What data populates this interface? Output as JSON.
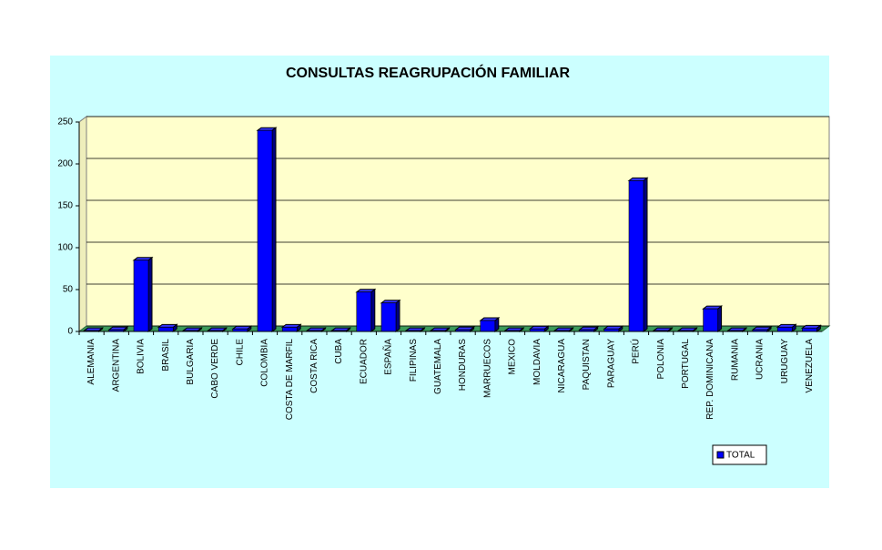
{
  "chart_data": {
    "type": "bar3d",
    "title": "CONSULTAS REAGRUPACIÓN FAMILIAR",
    "categories": [
      "ALEMANIA",
      "ARGENTINA",
      "BOLIVIA",
      "BRASIL",
      "BULGARIA",
      "CABO VERDE",
      "CHILE",
      "COLOMBIA",
      "COSTA DE MARFIL",
      "COSTA RICA",
      "CUBA",
      "ECUADOR",
      "ESPAÑA",
      "FILIPINAS",
      "GUATEMALA",
      "HONDURAS",
      "MARRUECOS",
      "MEXICO",
      "MOLDAVIA",
      "NICARAGUA",
      "PAQUISTAN",
      "PARAGUAY",
      "PERÚ",
      "POLONIA",
      "PORTUGAL",
      "REP. DOMINICANA",
      "RUMANIA",
      "UCRANIA",
      "URUGUAY",
      "VENEZUELA"
    ],
    "series": [
      {
        "name": "TOTAL",
        "color": "#0000ff",
        "values": [
          1,
          2,
          85,
          5,
          1,
          1,
          3,
          240,
          5,
          1,
          1,
          47,
          34,
          1,
          1,
          2,
          13,
          1,
          3,
          1,
          2,
          3,
          180,
          1,
          1,
          27,
          1,
          2,
          5,
          4
        ]
      }
    ],
    "ylim": [
      0,
      250
    ],
    "yticks": [
      0,
      50,
      100,
      150,
      200,
      250
    ],
    "grid": true,
    "legend": "bottom-right"
  }
}
